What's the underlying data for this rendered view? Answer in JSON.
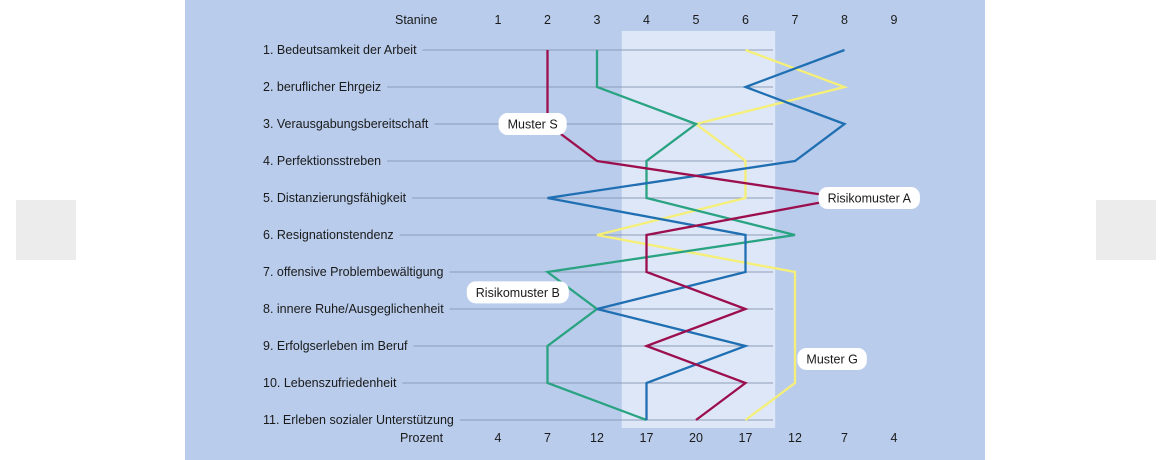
{
  "chart_data": {
    "type": "line",
    "top_axis_title": "Stanine",
    "bottom_axis_title": "Prozent",
    "stanine": [
      1,
      2,
      3,
      4,
      5,
      6,
      7,
      8,
      9
    ],
    "stanine_labels": [
      "1",
      "2",
      "3",
      "4",
      "5",
      "6",
      "7",
      "8",
      "9"
    ],
    "percent_labels": [
      "4",
      "7",
      "12",
      "17",
      "20",
      "17",
      "12",
      "7",
      "4"
    ],
    "categories": [
      "1. Bedeutsamkeit der Arbeit",
      "2. beruflicher Ehrgeiz",
      "3. Verausgabungsbereitschaft",
      "4. Perfektionsstreben",
      "5. Distanzierungsfähigkeit",
      "6. Resignationstendenz",
      "7. offensive Problembewältigung",
      "8. innere Ruhe/Ausgeglichenheit",
      "9. Erfolgserleben im Beruf",
      "10. Lebenszufriedenheit",
      "11. Erleben sozialer Unterstützung"
    ],
    "average_band": [
      3.5,
      6.6
    ],
    "series": [
      {
        "name": "Muster G",
        "color": "#f5ef78",
        "values": [
          6,
          8,
          5,
          6,
          6,
          3,
          7,
          7,
          7,
          7,
          6
        ]
      },
      {
        "name": "Muster S",
        "color": "#2aa382",
        "values": [
          3,
          3,
          5,
          4,
          4,
          7,
          2,
          3,
          2,
          2,
          4
        ]
      },
      {
        "name": "Risikomuster A",
        "color": "#1f6fb2",
        "values": [
          8,
          6,
          8,
          7,
          2,
          6,
          6,
          3,
          6,
          4,
          4
        ]
      },
      {
        "name": "Risikomuster B",
        "color": "#9c0f4e",
        "values": [
          2,
          2,
          2,
          3,
          8,
          4,
          4,
          6,
          4,
          6,
          5
        ]
      }
    ],
    "annotation_positions": {
      "Muster S": [
        1.7,
        2.0
      ],
      "Risikomuster A": [
        8.5,
        4.0
      ],
      "Risikomuster B": [
        1.4,
        6.55
      ],
      "Muster G": [
        7.75,
        8.35
      ]
    }
  }
}
